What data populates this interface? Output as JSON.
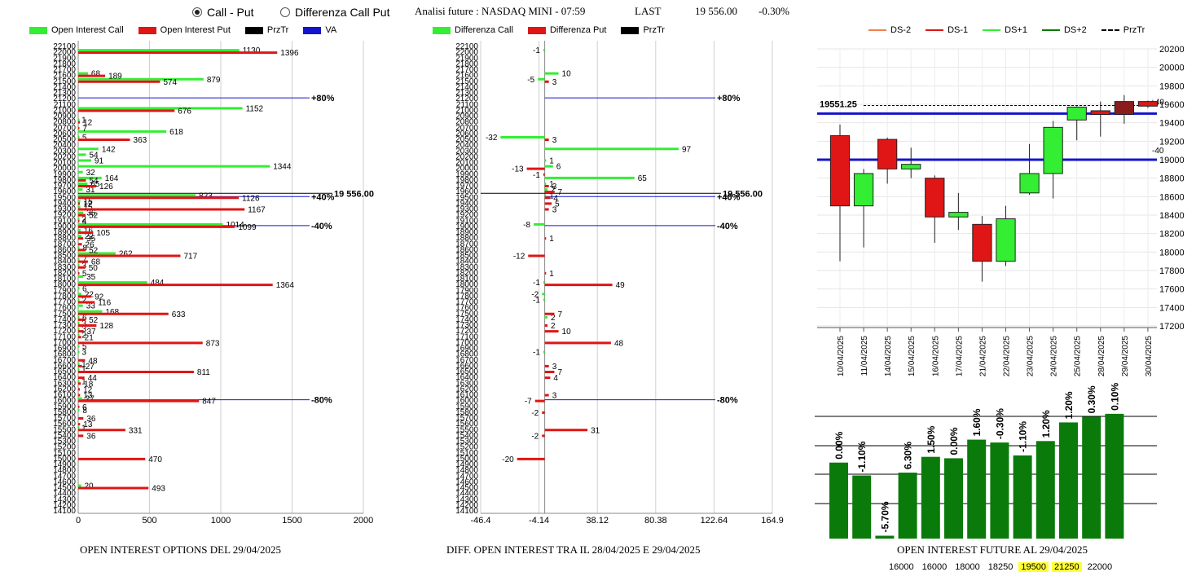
{
  "header": {
    "radio_options": [
      {
        "label": "Call - Put",
        "selected": true
      },
      {
        "label": "Differenza Call Put",
        "selected": false
      }
    ],
    "title": "Analisi future : NASDAQ MINI - 07:59",
    "last_label": "LAST",
    "last_value": "19 556.00",
    "last_change": "-0.30%"
  },
  "colors": {
    "green": "#33ee33",
    "red": "#e01515",
    "blue": "#1414cc",
    "darkgreen": "#0a7a0a",
    "black": "#000000"
  },
  "chart_data": [
    {
      "type": "bar",
      "orientation": "horizontal",
      "caption": "OPEN INTEREST OPTIONS DEL 29/04/2025",
      "legend": [
        "Open Interest Call",
        "Open Interest Put",
        "PrzTr",
        "VA"
      ],
      "y_ticks": [
        22100,
        22000,
        21900,
        21800,
        21700,
        21600,
        21500,
        21400,
        21300,
        21200,
        21100,
        21000,
        20900,
        20800,
        20700,
        20600,
        20500,
        20400,
        20300,
        20200,
        20100,
        20000,
        19900,
        19800,
        19700,
        19600,
        19500,
        19400,
        19300,
        19200,
        19100,
        19000,
        18900,
        18800,
        18700,
        18600,
        18500,
        18400,
        18300,
        18200,
        18100,
        18000,
        17900,
        17800,
        17700,
        17600,
        17500,
        17400,
        17300,
        17200,
        17100,
        17000,
        16900,
        16800,
        16700,
        16600,
        16500,
        16400,
        16300,
        16200,
        16100,
        16000,
        15900,
        15800,
        15700,
        15600,
        15500,
        15400,
        15300,
        15200,
        15100,
        15000,
        14900,
        14800,
        14700,
        14600,
        14500,
        14400,
        14300,
        14200,
        14100
      ],
      "x_ticks": [
        0,
        500,
        1000,
        1500,
        2000
      ],
      "xlim": [
        0,
        2000
      ],
      "series": [
        {
          "name": "Open Interest Call",
          "color": "#33ee33",
          "points": [
            {
              "y": 22000,
              "v": 1130
            },
            {
              "y": 21600,
              "v": 68
            },
            {
              "y": 21500,
              "v": 879
            },
            {
              "y": 21000,
              "v": 1152
            },
            {
              "y": 20800,
              "v": 1
            },
            {
              "y": 20600,
              "v": 618
            },
            {
              "y": 20500,
              "v": 5
            },
            {
              "y": 20300,
              "v": 142
            },
            {
              "y": 20200,
              "v": 54
            },
            {
              "y": 20100,
              "v": 91
            },
            {
              "y": 20000,
              "v": 1344
            },
            {
              "y": 19900,
              "v": 32
            },
            {
              "y": 19800,
              "v": 164
            },
            {
              "y": 19700,
              "v": 65
            },
            {
              "y": 19600,
              "v": 31
            },
            {
              "y": 19500,
              "v": 823
            },
            {
              "y": 19400,
              "v": 15
            },
            {
              "y": 19300,
              "v": 15
            },
            {
              "y": 19200,
              "v": 36
            },
            {
              "y": 19100,
              "v": 2
            },
            {
              "y": 19000,
              "v": 1014
            },
            {
              "y": 18900,
              "v": 16
            },
            {
              "y": 18800,
              "v": 22
            },
            {
              "y": 18600,
              "v": 8
            },
            {
              "y": 18500,
              "v": 262
            },
            {
              "y": 18400,
              "v": 7
            },
            {
              "y": 18300,
              "v": 3
            },
            {
              "y": 18100,
              "v": 35
            },
            {
              "y": 18000,
              "v": 484
            },
            {
              "y": 17900,
              "v": 6
            },
            {
              "y": 17800,
              "v": 22
            },
            {
              "y": 17700,
              "v": 2
            },
            {
              "y": 17600,
              "v": 33
            },
            {
              "y": 17500,
              "v": 168
            },
            {
              "y": 17400,
              "v": 6
            },
            {
              "y": 17300,
              "v": 3
            },
            {
              "y": 17200,
              "v": 3
            },
            {
              "y": 17100,
              "v": 2
            },
            {
              "y": 16900,
              "v": 5
            },
            {
              "y": 16800,
              "v": 3
            },
            {
              "y": 16600,
              "v": 1
            },
            {
              "y": 16500,
              "v": 1
            },
            {
              "y": 16300,
              "v": 1
            },
            {
              "y": 16000,
              "v": 27
            },
            {
              "y": 15800,
              "v": 8
            },
            {
              "y": 15500,
              "v": 1
            },
            {
              "y": 14500,
              "v": 20
            }
          ]
        },
        {
          "name": "Open Interest Put",
          "color": "#e01515",
          "points": [
            {
              "y": 22000,
              "v": 1396
            },
            {
              "y": 21600,
              "v": 189
            },
            {
              "y": 21500,
              "v": 574
            },
            {
              "y": 21000,
              "v": 676
            },
            {
              "y": 20800,
              "v": 12
            },
            {
              "y": 20700,
              "v": 7
            },
            {
              "y": 20500,
              "v": 363
            },
            {
              "y": 19800,
              "v": 54
            },
            {
              "y": 19700,
              "v": 126
            },
            {
              "y": 19500,
              "v": 1126
            },
            {
              "y": 19400,
              "v": 12
            },
            {
              "y": 19300,
              "v": 1167
            },
            {
              "y": 19200,
              "v": 52
            },
            {
              "y": 19100,
              "v": 4
            },
            {
              "y": 19000,
              "v": 1099
            },
            {
              "y": 18900,
              "v": 105
            },
            {
              "y": 18800,
              "v": 35
            },
            {
              "y": 18700,
              "v": 26
            },
            {
              "y": 18600,
              "v": 52
            },
            {
              "y": 18500,
              "v": 717
            },
            {
              "y": 18400,
              "v": 68
            },
            {
              "y": 18300,
              "v": 50
            },
            {
              "y": 18200,
              "v": 5
            },
            {
              "y": 18000,
              "v": 1364
            },
            {
              "y": 17800,
              "v": 92
            },
            {
              "y": 17700,
              "v": 116
            },
            {
              "y": 17500,
              "v": 633
            },
            {
              "y": 17400,
              "v": 52
            },
            {
              "y": 17300,
              "v": 128
            },
            {
              "y": 17200,
              "v": 37
            },
            {
              "y": 17100,
              "v": 21
            },
            {
              "y": 17000,
              "v": 873
            },
            {
              "y": 16700,
              "v": 48
            },
            {
              "y": 16600,
              "v": 27
            },
            {
              "y": 16500,
              "v": 811
            },
            {
              "y": 16400,
              "v": 44
            },
            {
              "y": 16300,
              "v": 18
            },
            {
              "y": 16200,
              "v": 12
            },
            {
              "y": 16100,
              "v": 13
            },
            {
              "y": 16000,
              "v": 847
            },
            {
              "y": 15900,
              "v": 6
            },
            {
              "y": 15700,
              "v": 36
            },
            {
              "y": 15600,
              "v": 13
            },
            {
              "y": 15500,
              "v": 331
            },
            {
              "y": 15400,
              "v": 36
            },
            {
              "y": 15000,
              "v": 470
            },
            {
              "y": 14500,
              "v": 493
            }
          ]
        }
      ],
      "ref_lines": [
        {
          "y": 21200,
          "label": "+80%"
        },
        {
          "y": 19500,
          "label": "+40%"
        },
        {
          "y": 19000,
          "label": "-40%"
        },
        {
          "y": 16000,
          "label": "-80%"
        }
      ],
      "price_line": {
        "y": 19556,
        "label": "19 556.00"
      }
    },
    {
      "type": "bar",
      "orientation": "horizontal",
      "caption": "DIFF. OPEN INTEREST TRA IL 28/04/2025 E 29/04/2025",
      "legend": [
        "Differenza Call",
        "Differenza Put",
        "PrzTr"
      ],
      "x_ticks": [
        "-46.4",
        "-4.14",
        "38.12",
        "80.38",
        "122.64",
        "164.9"
      ],
      "xlim": [
        -46.4,
        164.9
      ],
      "series": [
        {
          "name": "Differenza Call",
          "color": "#33ee33",
          "points": [
            {
              "y": 22000,
              "v": -1
            },
            {
              "y": 21600,
              "v": 10
            },
            {
              "y": 21500,
              "v": -5
            },
            {
              "y": 20500,
              "v": -32
            },
            {
              "y": 20300,
              "v": 97
            },
            {
              "y": 20100,
              "v": 1
            },
            {
              "y": 20000,
              "v": 6
            },
            {
              "y": 19800,
              "v": 65
            },
            {
              "y": 19700,
              "v": 1
            },
            {
              "y": 19600,
              "v": 2
            },
            {
              "y": 19500,
              "v": 1
            },
            {
              "y": 19000,
              "v": -8
            },
            {
              "y": 18000,
              "v": -1
            },
            {
              "y": 17800,
              "v": -2
            },
            {
              "y": 17700,
              "v": -1
            },
            {
              "y": 17400,
              "v": 2
            },
            {
              "y": 16800,
              "v": -1
            }
          ]
        },
        {
          "name": "Differenza Put",
          "color": "#e01515",
          "points": [
            {
              "y": 21500,
              "v": 3
            },
            {
              "y": 20500,
              "v": 3
            },
            {
              "y": 20000,
              "v": -13
            },
            {
              "y": 19900,
              "v": -1
            },
            {
              "y": 19700,
              "v": 3
            },
            {
              "y": 19600,
              "v": 7
            },
            {
              "y": 19500,
              "v": 4
            },
            {
              "y": 19400,
              "v": 5
            },
            {
              "y": 19300,
              "v": 3
            },
            {
              "y": 18800,
              "v": 1
            },
            {
              "y": 18500,
              "v": -12
            },
            {
              "y": 18200,
              "v": 1
            },
            {
              "y": 18000,
              "v": 49
            },
            {
              "y": 17500,
              "v": 7
            },
            {
              "y": 17300,
              "v": 2
            },
            {
              "y": 17200,
              "v": 10
            },
            {
              "y": 17000,
              "v": 48
            },
            {
              "y": 16600,
              "v": 3
            },
            {
              "y": 16500,
              "v": 7
            },
            {
              "y": 16400,
              "v": 4
            },
            {
              "y": 16100,
              "v": 3
            },
            {
              "y": 16000,
              "v": -7
            },
            {
              "y": 15800,
              "v": -2
            },
            {
              "y": 15500,
              "v": 31
            },
            {
              "y": 15400,
              "v": -2
            },
            {
              "y": 15000,
              "v": -20
            }
          ]
        }
      ],
      "ref_lines": [
        {
          "y": 21200,
          "label": "+80%"
        },
        {
          "y": 19500,
          "label": "+40%"
        },
        {
          "y": 19000,
          "label": "-40%"
        },
        {
          "y": 16000,
          "label": "-80%"
        }
      ],
      "price_line": {
        "y": 19556,
        "label": "19 556.00"
      }
    },
    {
      "type": "candlestick",
      "legend": [
        "DS-2",
        "DS-1",
        "DS+1",
        "DS+2",
        "PrzTr"
      ],
      "legend_colors": [
        "#f08050",
        "#d81818",
        "#33ee33",
        "#0a7a0a",
        "#000000"
      ],
      "y_ticks": [
        20200,
        20000,
        19800,
        19600,
        19400,
        19200,
        19000,
        18800,
        18600,
        18400,
        18200,
        18000,
        17800,
        17600,
        17400,
        17200
      ],
      "ylim": [
        17200,
        20200
      ],
      "dates": [
        "10/04/2025",
        "11/04/2025",
        "14/04/2025",
        "15/04/2025",
        "16/04/2025",
        "17/04/2025",
        "21/04/2025",
        "22/04/2025",
        "23/04/2025",
        "24/04/2025",
        "25/04/2025",
        "28/04/2025",
        "29/04/2025",
        "30/04/2025"
      ],
      "candles": [
        {
          "o": 19260,
          "h": 19380,
          "l": 17900,
          "c": 18500
        },
        {
          "o": 18500,
          "h": 18900,
          "l": 18050,
          "c": 18850
        },
        {
          "o": 19220,
          "h": 19240,
          "l": 18740,
          "c": 18900
        },
        {
          "o": 18900,
          "h": 19130,
          "l": 18800,
          "c": 18950
        },
        {
          "o": 18800,
          "h": 18830,
          "l": 18100,
          "c": 18380
        },
        {
          "o": 18380,
          "h": 18640,
          "l": 18240,
          "c": 18430
        },
        {
          "o": 18300,
          "h": 18390,
          "l": 17680,
          "c": 17900
        },
        {
          "o": 17900,
          "h": 18500,
          "l": 17850,
          "c": 18360
        },
        {
          "o": 18640,
          "h": 19170,
          "l": 18620,
          "c": 18850
        },
        {
          "o": 18850,
          "h": 19420,
          "l": 18580,
          "c": 19350
        },
        {
          "o": 19430,
          "h": 19580,
          "l": 19210,
          "c": 19570
        },
        {
          "o": 19530,
          "h": 19630,
          "l": 19250,
          "c": 19490
        },
        {
          "o": 19490,
          "h": 19700,
          "l": 19390,
          "c": 19630
        },
        {
          "o": 19630,
          "h": 19640,
          "l": 19560,
          "c": 19580
        }
      ],
      "h_lines": [
        {
          "v": 19500,
          "label": ""
        },
        {
          "v": 19000,
          "label": "-40"
        }
      ],
      "right_marks": [
        "+40",
        "-40"
      ],
      "prztr": {
        "v": 19551.25,
        "label": "19551.25"
      },
      "percent_labels": [
        "0.00%",
        "-1.10%",
        "-5.70%",
        "6.30%",
        "1.50%",
        "0.00%",
        "1.60%",
        "-0.30%",
        "-1.10%",
        "1.20%",
        "1.20%",
        "0.30%",
        "0.10%"
      ],
      "oi_values": [
        0.53,
        0.44,
        0.02,
        0.46,
        0.57,
        0.56,
        0.69,
        0.67,
        0.58,
        0.68,
        0.81,
        0.85,
        0.87
      ],
      "caption": "OPEN INTEREST FUTURE AL 29/04/2025",
      "strip": [
        "16000",
        "16000",
        "18000",
        "18250",
        "19500",
        "21250",
        "22000"
      ],
      "strip_highlight": [
        false,
        false,
        false,
        false,
        true,
        true,
        false
      ]
    }
  ]
}
